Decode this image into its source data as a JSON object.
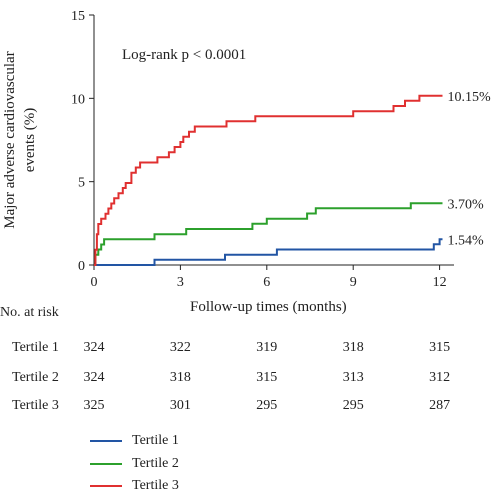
{
  "chart_data": {
    "type": "line",
    "title": "",
    "annotation": "Log-rank p < 0.0001",
    "xlabel": "Follow-up times (months)",
    "ylabel_line1": "Major adverse cardiovascular",
    "ylabel_line2": "events (%)",
    "xlim": [
      0,
      12.5
    ],
    "ylim": [
      0,
      15
    ],
    "xticks": [
      0,
      3,
      6,
      9,
      12
    ],
    "yticks": [
      0,
      5,
      10,
      15
    ],
    "series": [
      {
        "name": "Tertile 1",
        "color": "#2255a4",
        "end_label": "1.54%",
        "points": [
          [
            0,
            0
          ],
          [
            2.1,
            0
          ],
          [
            2.1,
            0.31
          ],
          [
            4.55,
            0.31
          ],
          [
            4.55,
            0.62
          ],
          [
            6.35,
            0.62
          ],
          [
            6.35,
            0.93
          ],
          [
            11.8,
            0.93
          ],
          [
            11.8,
            1.24
          ],
          [
            12.0,
            1.24
          ],
          [
            12.0,
            1.54
          ],
          [
            12.1,
            1.54
          ]
        ]
      },
      {
        "name": "Tertile 2",
        "color": "#2ca02c",
        "end_label": "3.70%",
        "points": [
          [
            0,
            0
          ],
          [
            0.05,
            0
          ],
          [
            0.05,
            0.62
          ],
          [
            0.15,
            0.62
          ],
          [
            0.15,
            0.93
          ],
          [
            0.25,
            0.93
          ],
          [
            0.25,
            1.23
          ],
          [
            0.35,
            1.23
          ],
          [
            0.35,
            1.54
          ],
          [
            2.1,
            1.54
          ],
          [
            2.1,
            1.85
          ],
          [
            3.2,
            1.85
          ],
          [
            3.2,
            2.16
          ],
          [
            5.5,
            2.16
          ],
          [
            5.5,
            2.47
          ],
          [
            6.0,
            2.47
          ],
          [
            6.0,
            2.78
          ],
          [
            7.4,
            2.78
          ],
          [
            7.4,
            3.09
          ],
          [
            7.7,
            3.09
          ],
          [
            7.7,
            3.4
          ],
          [
            11.0,
            3.4
          ],
          [
            11.0,
            3.7
          ],
          [
            12.1,
            3.7
          ]
        ]
      },
      {
        "name": "Tertile 3",
        "color": "#e03030",
        "end_label": "10.15%",
        "points": [
          [
            0,
            0
          ],
          [
            0.05,
            0
          ],
          [
            0.05,
            0.92
          ],
          [
            0.1,
            0.92
          ],
          [
            0.1,
            1.85
          ],
          [
            0.15,
            1.85
          ],
          [
            0.15,
            2.46
          ],
          [
            0.25,
            2.46
          ],
          [
            0.25,
            2.77
          ],
          [
            0.4,
            2.77
          ],
          [
            0.4,
            3.08
          ],
          [
            0.5,
            3.08
          ],
          [
            0.5,
            3.39
          ],
          [
            0.6,
            3.39
          ],
          [
            0.6,
            3.69
          ],
          [
            0.7,
            3.69
          ],
          [
            0.7,
            4.0
          ],
          [
            0.85,
            4.0
          ],
          [
            0.85,
            4.31
          ],
          [
            1.0,
            4.31
          ],
          [
            1.0,
            4.62
          ],
          [
            1.1,
            4.62
          ],
          [
            1.1,
            4.92
          ],
          [
            1.3,
            4.92
          ],
          [
            1.3,
            5.54
          ],
          [
            1.45,
            5.54
          ],
          [
            1.45,
            5.85
          ],
          [
            1.6,
            5.85
          ],
          [
            1.6,
            6.15
          ],
          [
            2.2,
            6.15
          ],
          [
            2.2,
            6.46
          ],
          [
            2.6,
            6.46
          ],
          [
            2.6,
            6.77
          ],
          [
            2.8,
            6.77
          ],
          [
            2.8,
            7.08
          ],
          [
            3.0,
            7.08
          ],
          [
            3.0,
            7.38
          ],
          [
            3.1,
            7.38
          ],
          [
            3.1,
            7.69
          ],
          [
            3.3,
            7.69
          ],
          [
            3.3,
            8.0
          ],
          [
            3.5,
            8.0
          ],
          [
            3.5,
            8.31
          ],
          [
            4.6,
            8.31
          ],
          [
            4.6,
            8.62
          ],
          [
            5.6,
            8.62
          ],
          [
            5.6,
            8.92
          ],
          [
            9.0,
            8.92
          ],
          [
            9.0,
            9.23
          ],
          [
            10.4,
            9.23
          ],
          [
            10.4,
            9.54
          ],
          [
            10.8,
            9.54
          ],
          [
            10.8,
            9.85
          ],
          [
            11.3,
            9.85
          ],
          [
            11.3,
            10.15
          ],
          [
            12.1,
            10.15
          ]
        ]
      }
    ],
    "risk_table": {
      "title": "No. at risk",
      "times": [
        0,
        3,
        6,
        9,
        12
      ],
      "rows": [
        {
          "label": "Tertile 1",
          "values": [
            "324",
            "322",
            "319",
            "318",
            "315"
          ]
        },
        {
          "label": "Tertile 2",
          "values": [
            "324",
            "318",
            "315",
            "313",
            "312"
          ]
        },
        {
          "label": "Tertile 3",
          "values": [
            "325",
            "301",
            "295",
            "295",
            "287"
          ]
        }
      ]
    },
    "legend_placement": "bottom-left",
    "grid": false
  }
}
